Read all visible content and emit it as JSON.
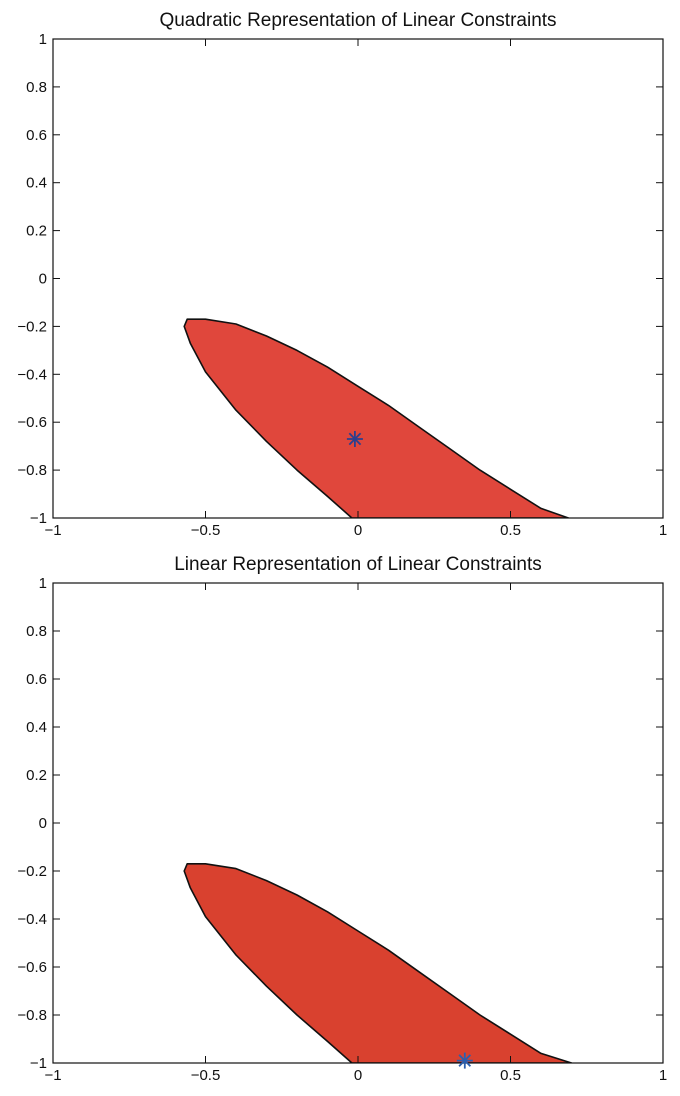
{
  "chart_data": [
    {
      "type": "area",
      "title": "Quadratic Representation of Linear Constraints",
      "xlabel": "",
      "ylabel": "",
      "xlim": [
        -1,
        1
      ],
      "ylim": [
        -1,
        1
      ],
      "xticks": [
        -1,
        -0.5,
        0,
        0.5,
        1
      ],
      "xtick_labels": [
        "−1",
        "−0.5",
        "0",
        "0.5",
        "1"
      ],
      "yticks": [
        -1,
        -0.8,
        -0.6,
        -0.4,
        -0.2,
        0,
        0.2,
        0.4,
        0.6,
        0.8,
        1
      ],
      "ytick_labels": [
        "−1",
        "−0.8",
        "−0.6",
        "−0.4",
        "−0.2",
        "0",
        "0.2",
        "0.4",
        "0.6",
        "0.8",
        "1"
      ],
      "grid": false,
      "region": {
        "fill": "#e0473c",
        "stroke": "#111111",
        "boundary": [
          [
            -0.56,
            -0.17
          ],
          [
            -0.5,
            -0.17
          ],
          [
            -0.4,
            -0.19
          ],
          [
            -0.3,
            -0.24
          ],
          [
            -0.2,
            -0.3
          ],
          [
            -0.1,
            -0.37
          ],
          [
            0.0,
            -0.45
          ],
          [
            0.1,
            -0.53
          ],
          [
            0.2,
            -0.62
          ],
          [
            0.3,
            -0.71
          ],
          [
            0.4,
            -0.8
          ],
          [
            0.5,
            -0.88
          ],
          [
            0.6,
            -0.96
          ],
          [
            0.69,
            -1.0
          ],
          [
            -0.02,
            -1.0
          ],
          [
            -0.1,
            -0.91
          ],
          [
            -0.2,
            -0.8
          ],
          [
            -0.3,
            -0.68
          ],
          [
            -0.4,
            -0.55
          ],
          [
            -0.5,
            -0.39
          ],
          [
            -0.55,
            -0.27
          ],
          [
            -0.57,
            -0.2
          ]
        ]
      },
      "marker": {
        "x": -0.01,
        "y": -0.67,
        "symbol": "asterisk",
        "color": "#2b3f8f"
      }
    },
    {
      "type": "area",
      "title": "Linear Representation of Linear Constraints",
      "xlabel": "",
      "ylabel": "",
      "xlim": [
        -1,
        1
      ],
      "ylim": [
        -1,
        1
      ],
      "xticks": [
        -1,
        -0.5,
        0,
        0.5,
        1
      ],
      "xtick_labels": [
        "−1",
        "−0.5",
        "0",
        "0.5",
        "1"
      ],
      "yticks": [
        -1,
        -0.8,
        -0.6,
        -0.4,
        -0.2,
        0,
        0.2,
        0.4,
        0.6,
        0.8,
        1
      ],
      "ytick_labels": [
        "−1",
        "−0.8",
        "−0.6",
        "−0.4",
        "−0.2",
        "0",
        "0.2",
        "0.4",
        "0.6",
        "0.8",
        "1"
      ],
      "grid": false,
      "region": {
        "fill": "#d9412f",
        "stroke": "#111111",
        "boundary": [
          [
            -0.56,
            -0.17
          ],
          [
            -0.5,
            -0.17
          ],
          [
            -0.4,
            -0.19
          ],
          [
            -0.3,
            -0.24
          ],
          [
            -0.2,
            -0.3
          ],
          [
            -0.1,
            -0.37
          ],
          [
            0.0,
            -0.45
          ],
          [
            0.1,
            -0.53
          ],
          [
            0.2,
            -0.62
          ],
          [
            0.3,
            -0.71
          ],
          [
            0.4,
            -0.8
          ],
          [
            0.5,
            -0.88
          ],
          [
            0.6,
            -0.96
          ],
          [
            0.7,
            -1.0
          ],
          [
            -0.02,
            -1.0
          ],
          [
            -0.1,
            -0.91
          ],
          [
            -0.2,
            -0.8
          ],
          [
            -0.3,
            -0.68
          ],
          [
            -0.4,
            -0.55
          ],
          [
            -0.5,
            -0.39
          ],
          [
            -0.55,
            -0.27
          ],
          [
            -0.57,
            -0.2
          ]
        ]
      },
      "marker": {
        "x": 0.35,
        "y": -0.99,
        "symbol": "asterisk",
        "color": "#2b5fae"
      }
    }
  ]
}
